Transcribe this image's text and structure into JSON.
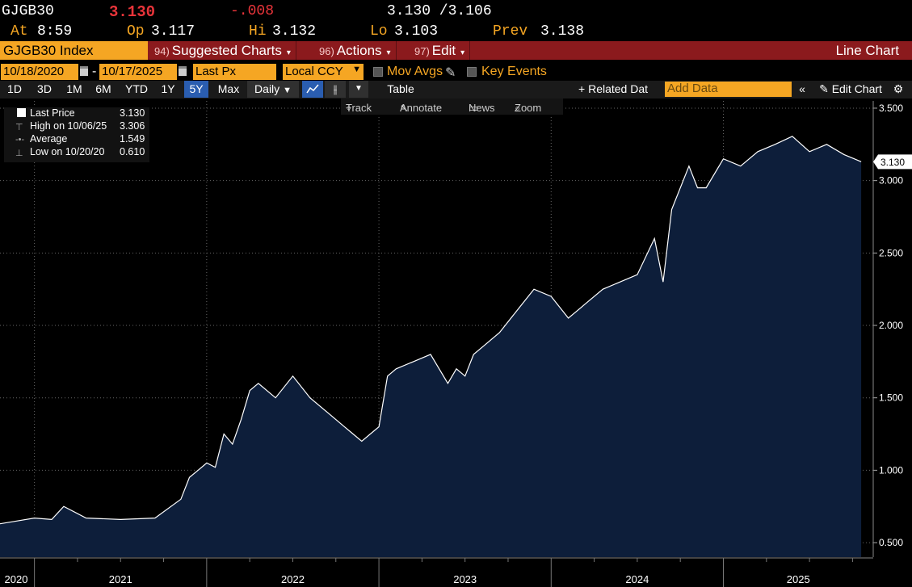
{
  "quote": {
    "ticker": "GJGB30",
    "last": "3.130",
    "change": "-.008",
    "bid_ask": "3.130 /3.106",
    "at_label": "At",
    "time": "8:59",
    "op_label": "Op",
    "open": "3.117",
    "hi_label": "Hi",
    "high": "3.132",
    "lo_label": "Lo",
    "low": "3.103",
    "prev_label": "Prev",
    "prev": "3.138"
  },
  "titlebar": {
    "security": "GJGB30 Index",
    "menus": [
      {
        "num": "94)",
        "label": "Suggested Charts"
      },
      {
        "num": "96)",
        "label": "Actions"
      },
      {
        "num": "97)",
        "label": "Edit"
      }
    ],
    "chart_type": "Line Chart"
  },
  "controls": {
    "start_date": "10/18/2020",
    "end_date": "10/17/2025",
    "field": "Last Px",
    "currency": "Local CCY",
    "mov_avgs": "Mov Avgs",
    "key_events": "Key Events",
    "ranges": [
      "1D",
      "3D",
      "1M",
      "6M",
      "YTD",
      "1Y",
      "5Y",
      "Max"
    ],
    "active_range": "5Y",
    "frequency": "Daily",
    "table_label": "Table",
    "related_data": "Related Dat",
    "add_data_placeholder": "Add Data",
    "edit_chart": "Edit Chart"
  },
  "toolbar": {
    "track": "Track",
    "annotate": "Annotate",
    "news": "News",
    "zoom": "Zoom"
  },
  "legend": {
    "rows": [
      {
        "label": "Last Price",
        "value": "3.130"
      },
      {
        "label": "High on 10/06/25",
        "value": "3.306"
      },
      {
        "label": "Average",
        "value": "1.549"
      },
      {
        "label": "Low on 10/20/20",
        "value": "0.610"
      }
    ]
  },
  "colors": {
    "area_fill": "#0d1e3a",
    "line": "#ffffff",
    "accent": "#f5a623",
    "title_bar": "#8b1a1d"
  },
  "chart_data": {
    "type": "area",
    "title": "GJGB30 Index",
    "series": [
      {
        "name": "Last Price",
        "x": [
          2020.8,
          2020.9,
          2021.0,
          2021.1,
          2021.17,
          2021.3,
          2021.5,
          2021.7,
          2021.85,
          2021.9,
          2021.95,
          2022.0,
          2022.05,
          2022.1,
          2022.15,
          2022.2,
          2022.25,
          2022.3,
          2022.4,
          2022.5,
          2022.6,
          2022.7,
          2022.8,
          2022.85,
          2022.9,
          2022.95,
          2023.0,
          2023.05,
          2023.1,
          2023.2,
          2023.3,
          2023.4,
          2023.45,
          2023.5,
          2023.55,
          2023.6,
          2023.7,
          2023.8,
          2023.9,
          2024.0,
          2024.1,
          2024.15,
          2024.2,
          2024.3,
          2024.4,
          2024.5,
          2024.6,
          2024.65,
          2024.7,
          2024.8,
          2024.85,
          2024.9,
          2025.0,
          2025.1,
          2025.2,
          2025.3,
          2025.4,
          2025.5,
          2025.6,
          2025.7,
          2025.76,
          2025.8
        ],
        "values": [
          0.63,
          0.65,
          0.67,
          0.66,
          0.75,
          0.67,
          0.66,
          0.67,
          0.8,
          0.95,
          1.0,
          1.05,
          1.02,
          1.25,
          1.18,
          1.35,
          1.55,
          1.6,
          1.5,
          1.65,
          1.5,
          1.4,
          1.3,
          1.25,
          1.2,
          1.25,
          1.3,
          1.65,
          1.7,
          1.75,
          1.8,
          1.6,
          1.7,
          1.65,
          1.8,
          1.85,
          1.95,
          2.1,
          2.25,
          2.2,
          2.05,
          2.1,
          2.15,
          2.25,
          2.3,
          2.35,
          2.6,
          2.3,
          2.8,
          3.1,
          2.95,
          2.95,
          3.15,
          3.1,
          3.2,
          3.25,
          3.306,
          3.2,
          3.25,
          3.18,
          3.15,
          3.13
        ]
      }
    ],
    "y_ticks": [
      "0.500",
      "1.000",
      "1.500",
      "2.000",
      "2.500",
      "3.000",
      "3.500"
    ],
    "ylim": [
      0.4,
      3.55
    ],
    "x_labels": [
      "2020",
      "2021",
      "2022",
      "2023",
      "2024",
      "2025"
    ],
    "xlim": [
      2020.8,
      2025.87
    ],
    "last_label": "3.130",
    "grid": true
  }
}
